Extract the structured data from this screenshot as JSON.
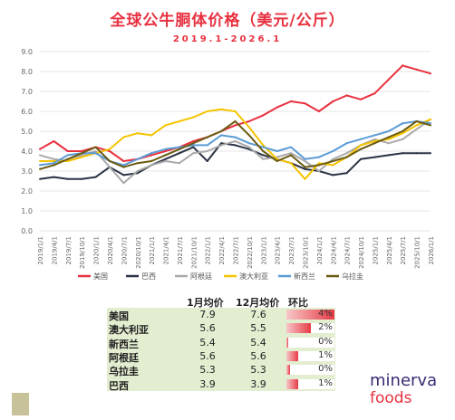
{
  "title": "全球公牛胴体价格（美元/公斤）",
  "subtitle": "2019.1-2026.1",
  "colors": {
    "title": "#e8303f",
    "table_bg": "#e3edd0",
    "bar": "#e63b45"
  },
  "chart_data": {
    "type": "line",
    "x": [
      "2019/1/1",
      "2019/4/1",
      "2019/7/1",
      "2019/10/1",
      "2020/1/1",
      "2020/4/1",
      "2020/7/1",
      "2020/10/1",
      "2021/1/1",
      "2021/4/1",
      "2021/7/1",
      "2021/10/1",
      "2022/1/1",
      "2022/4/1",
      "2022/7/1",
      "2022/10/1",
      "2023/1/1",
      "2023/4/1",
      "2023/7/1",
      "2023/10/1",
      "2024/1/1",
      "2024/4/1",
      "2024/7/1",
      "2024/10/1",
      "2025/1/1",
      "2025/4/1",
      "2025/7/1",
      "2025/10/1",
      "2026/1/1"
    ],
    "ylim": [
      0,
      9.0
    ],
    "yticks": [
      "0.0",
      "1.0",
      "2.0",
      "3.0",
      "4.0",
      "5.0",
      "6.0",
      "7.0",
      "8.0",
      "9.0"
    ],
    "grid": true,
    "legend_position": "bottom",
    "series": [
      {
        "name": "美国",
        "color": "#e8303f",
        "values": [
          4.1,
          4.5,
          4.0,
          4.0,
          4.2,
          4.0,
          3.5,
          3.6,
          3.8,
          4.0,
          4.2,
          4.5,
          4.7,
          5.0,
          5.3,
          5.5,
          5.8,
          6.2,
          6.5,
          6.4,
          6.0,
          6.5,
          6.8,
          6.6,
          6.9,
          7.6,
          8.3,
          8.1,
          7.9
        ]
      },
      {
        "name": "巴西",
        "color": "#2b3445",
        "values": [
          2.6,
          2.7,
          2.6,
          2.6,
          2.7,
          3.2,
          2.8,
          2.9,
          3.3,
          3.6,
          3.9,
          4.2,
          3.5,
          4.4,
          4.3,
          4.1,
          3.8,
          3.6,
          3.4,
          3.1,
          3.0,
          2.8,
          2.9,
          3.6,
          3.7,
          3.8,
          3.9,
          3.9,
          3.9
        ]
      },
      {
        "name": "阿根廷",
        "color": "#a9a9a9",
        "values": [
          3.8,
          3.6,
          3.5,
          3.8,
          4.0,
          3.2,
          2.4,
          3.0,
          3.3,
          3.5,
          3.4,
          3.9,
          4.0,
          4.3,
          4.5,
          4.2,
          3.6,
          3.7,
          3.9,
          3.5,
          3.0,
          3.6,
          3.9,
          4.3,
          4.6,
          4.4,
          4.6,
          5.1,
          5.6
        ]
      },
      {
        "name": "澳大利亚",
        "color": "#f5c400",
        "values": [
          3.5,
          3.5,
          3.5,
          3.7,
          3.9,
          4.1,
          4.7,
          4.9,
          4.8,
          5.3,
          5.5,
          5.7,
          6.0,
          6.1,
          6.0,
          5.2,
          4.3,
          3.6,
          3.4,
          2.6,
          3.4,
          3.3,
          3.7,
          4.3,
          4.5,
          4.6,
          4.9,
          5.3,
          5.6
        ]
      },
      {
        "name": "新西兰",
        "color": "#5b9bd5",
        "values": [
          3.3,
          3.4,
          3.8,
          3.9,
          3.9,
          3.5,
          3.3,
          3.6,
          3.9,
          4.1,
          4.2,
          4.3,
          4.3,
          4.8,
          4.7,
          4.4,
          4.2,
          4.0,
          4.2,
          3.6,
          3.7,
          4.0,
          4.4,
          4.6,
          4.8,
          5.0,
          5.4,
          5.5,
          5.4
        ]
      },
      {
        "name": "乌拉圭",
        "color": "#6b5b12",
        "values": [
          3.1,
          3.3,
          3.6,
          3.9,
          4.2,
          3.5,
          3.2,
          3.4,
          3.5,
          3.8,
          4.1,
          4.4,
          4.7,
          5.0,
          5.5,
          4.8,
          4.0,
          3.5,
          3.8,
          3.2,
          3.3,
          3.5,
          3.7,
          4.1,
          4.4,
          4.7,
          5.0,
          5.5,
          5.3
        ]
      }
    ]
  },
  "table": {
    "headers": [
      "1月均价",
      "12月均价",
      "环比"
    ],
    "rows": [
      {
        "name": "美国",
        "jan": "7.9",
        "dec": "7.6",
        "pct": "4%",
        "pct_value": 4
      },
      {
        "name": "澳大利亚",
        "jan": "5.6",
        "dec": "5.5",
        "pct": "2%",
        "pct_value": 2
      },
      {
        "name": "新西兰",
        "jan": "5.4",
        "dec": "5.4",
        "pct": "0%",
        "pct_value": 0
      },
      {
        "name": "阿根廷",
        "jan": "5.6",
        "dec": "5.6",
        "pct": "1%",
        "pct_value": 1
      },
      {
        "name": "乌拉圭",
        "jan": "5.3",
        "dec": "5.3",
        "pct": "0%",
        "pct_value": 0.3
      },
      {
        "name": "巴西",
        "jan": "3.9",
        "dec": "3.9",
        "pct": "1%",
        "pct_value": 1
      }
    ]
  },
  "logo": {
    "line1": "minerva",
    "line2": "foods"
  }
}
